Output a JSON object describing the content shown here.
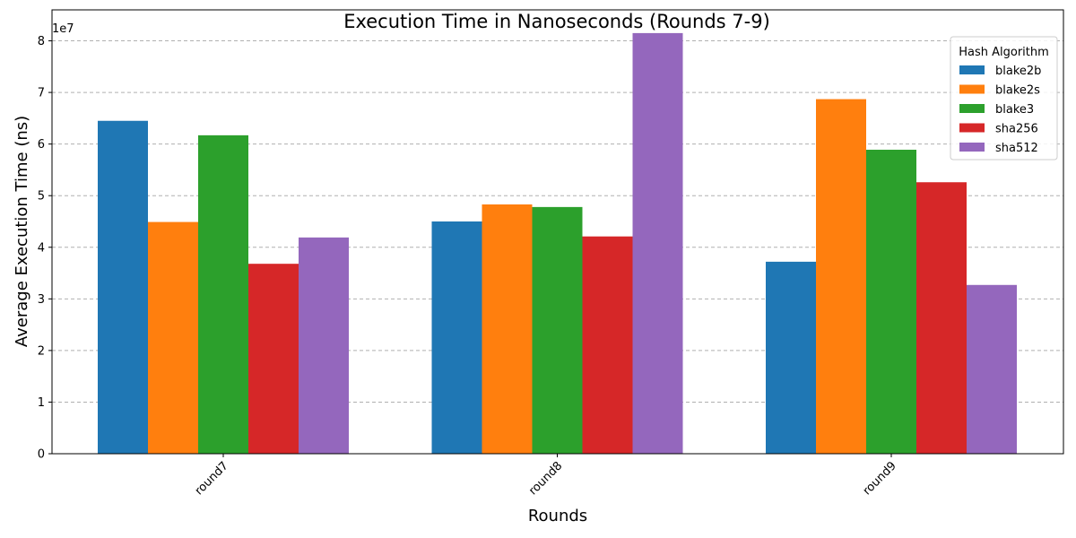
{
  "chart_data": {
    "type": "bar",
    "title": "Execution Time in Nanoseconds (Rounds 7-9)",
    "xlabel": "Rounds",
    "ylabel": "Average Execution Time (ns)",
    "y_offset_label": "1e7",
    "categories": [
      "round7",
      "round8",
      "round9"
    ],
    "ylim": [
      0,
      8.6
    ],
    "yticks": [
      0,
      1,
      2,
      3,
      4,
      5,
      6,
      7,
      8
    ],
    "y_scale_note": "values in units of 1e7 ns",
    "grid": "y, dashed",
    "legend_title": "Hash Algorithm",
    "legend_position": "top-right",
    "series": [
      {
        "name": "blake2b",
        "color": "#1f77b4",
        "values": [
          6.45,
          4.5,
          3.72
        ]
      },
      {
        "name": "blake2s",
        "color": "#ff7f0e",
        "values": [
          4.49,
          4.83,
          6.87
        ]
      },
      {
        "name": "blake3",
        "color": "#2ca02c",
        "values": [
          6.17,
          4.78,
          5.89
        ]
      },
      {
        "name": "sha256",
        "color": "#d62728",
        "values": [
          3.68,
          4.21,
          5.26
        ]
      },
      {
        "name": "sha512",
        "color": "#9467bd",
        "values": [
          4.19,
          8.15,
          3.27
        ]
      }
    ]
  }
}
